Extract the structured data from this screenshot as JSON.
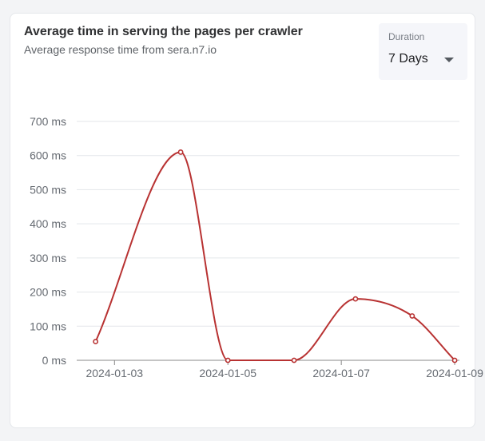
{
  "card": {
    "title": "Average time in serving the pages per crawler",
    "subtitle": "Average response time from sera.n7.io"
  },
  "duration": {
    "label": "Duration",
    "value": "7 Days"
  },
  "colors": {
    "line": "#b83232",
    "grid": "#e3e6ea",
    "axis": "#888888"
  },
  "chart_data": {
    "type": "line",
    "x": [
      "2024-01-02T16:00",
      "2024-01-04T04:00",
      "2024-01-05T00:00",
      "2024-01-06T04:00",
      "2024-01-07T06:00",
      "2024-01-08T06:00",
      "2024-01-09T00:00"
    ],
    "series": [
      {
        "values": [
          55,
          610,
          0,
          0,
          180,
          130,
          0
        ]
      }
    ],
    "ylim": [
      0,
      700
    ],
    "yticks": [
      0,
      100,
      200,
      300,
      400,
      500,
      600,
      700
    ],
    "ytick_labels": [
      "0 ms",
      "100 ms",
      "200 ms",
      "300 ms",
      "400 ms",
      "500 ms",
      "600 ms",
      "700 ms"
    ],
    "xlim": [
      "2024-01-02T08:00",
      "2024-01-09T02:00"
    ],
    "xticks": [
      "2024-01-03",
      "2024-01-05",
      "2024-01-07",
      "2024-01-09"
    ],
    "grid": true,
    "smooth": true
  }
}
